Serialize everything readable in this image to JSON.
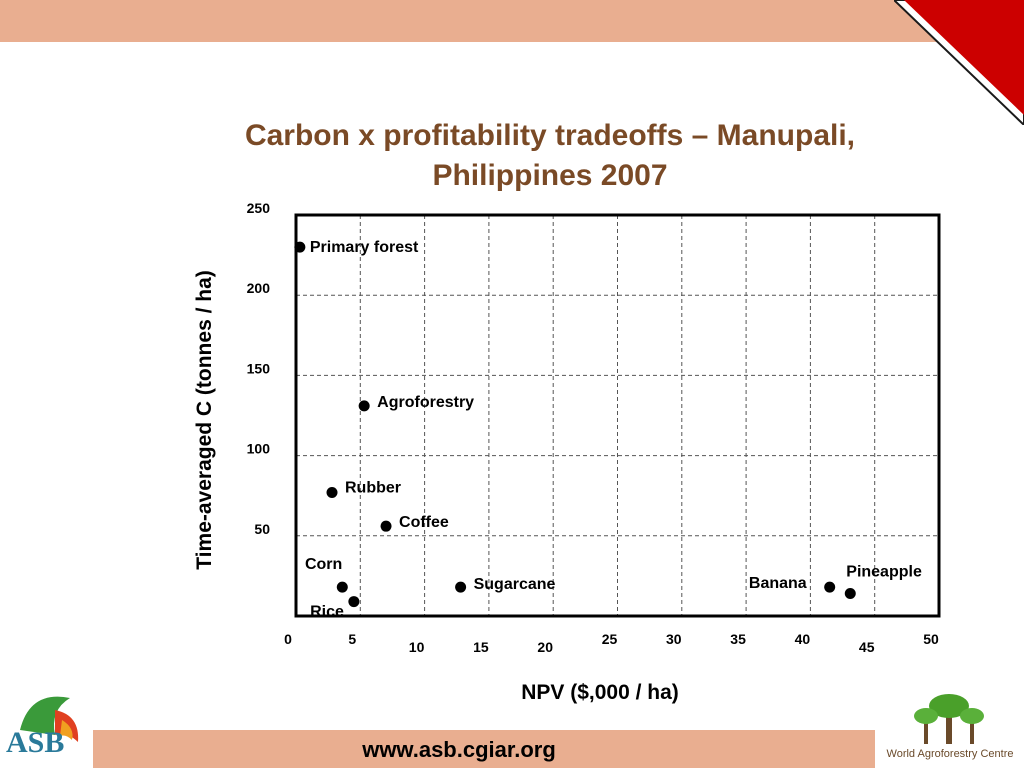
{
  "slide": {
    "title_line1": "Carbon x profitability tradeoffs – Manupali,",
    "title_line2": "Philippines 2007",
    "footer_url": "www.asb.cgiar.org",
    "asb_logo_text": "ASB",
    "wac_logo_text": "World Agroforestry Centre"
  },
  "colors": {
    "band": "#e9ae90",
    "title": "#7a4a26",
    "corner": "#cc0000",
    "logo_green": "#3a9a3a"
  },
  "chart_data": {
    "type": "scatter",
    "xlabel": "NPV ($,000 / ha)",
    "ylabel": "Time-averaged C (tonnes / ha)",
    "xlim": [
      0,
      50
    ],
    "ylim": [
      0,
      250
    ],
    "x_ticks": [
      0,
      5,
      10,
      15,
      20,
      25,
      30,
      35,
      40,
      45,
      50
    ],
    "y_ticks": [
      50,
      100,
      150,
      200,
      250
    ],
    "grid": true,
    "points": [
      {
        "label": "Primary forest",
        "x": 0.3,
        "y": 230
      },
      {
        "label": "Agroforestry",
        "x": 5.3,
        "y": 131
      },
      {
        "label": "Rubber",
        "x": 2.8,
        "y": 77
      },
      {
        "label": "Coffee",
        "x": 7,
        "y": 56
      },
      {
        "label": "Corn",
        "x": 3.6,
        "y": 18
      },
      {
        "label": "Rice",
        "x": 4.5,
        "y": 9
      },
      {
        "label": "Sugarcane",
        "x": 12.8,
        "y": 18
      },
      {
        "label": "Banana",
        "x": 41.5,
        "y": 18
      },
      {
        "label": "Pineapple",
        "x": 43.1,
        "y": 14
      }
    ]
  }
}
